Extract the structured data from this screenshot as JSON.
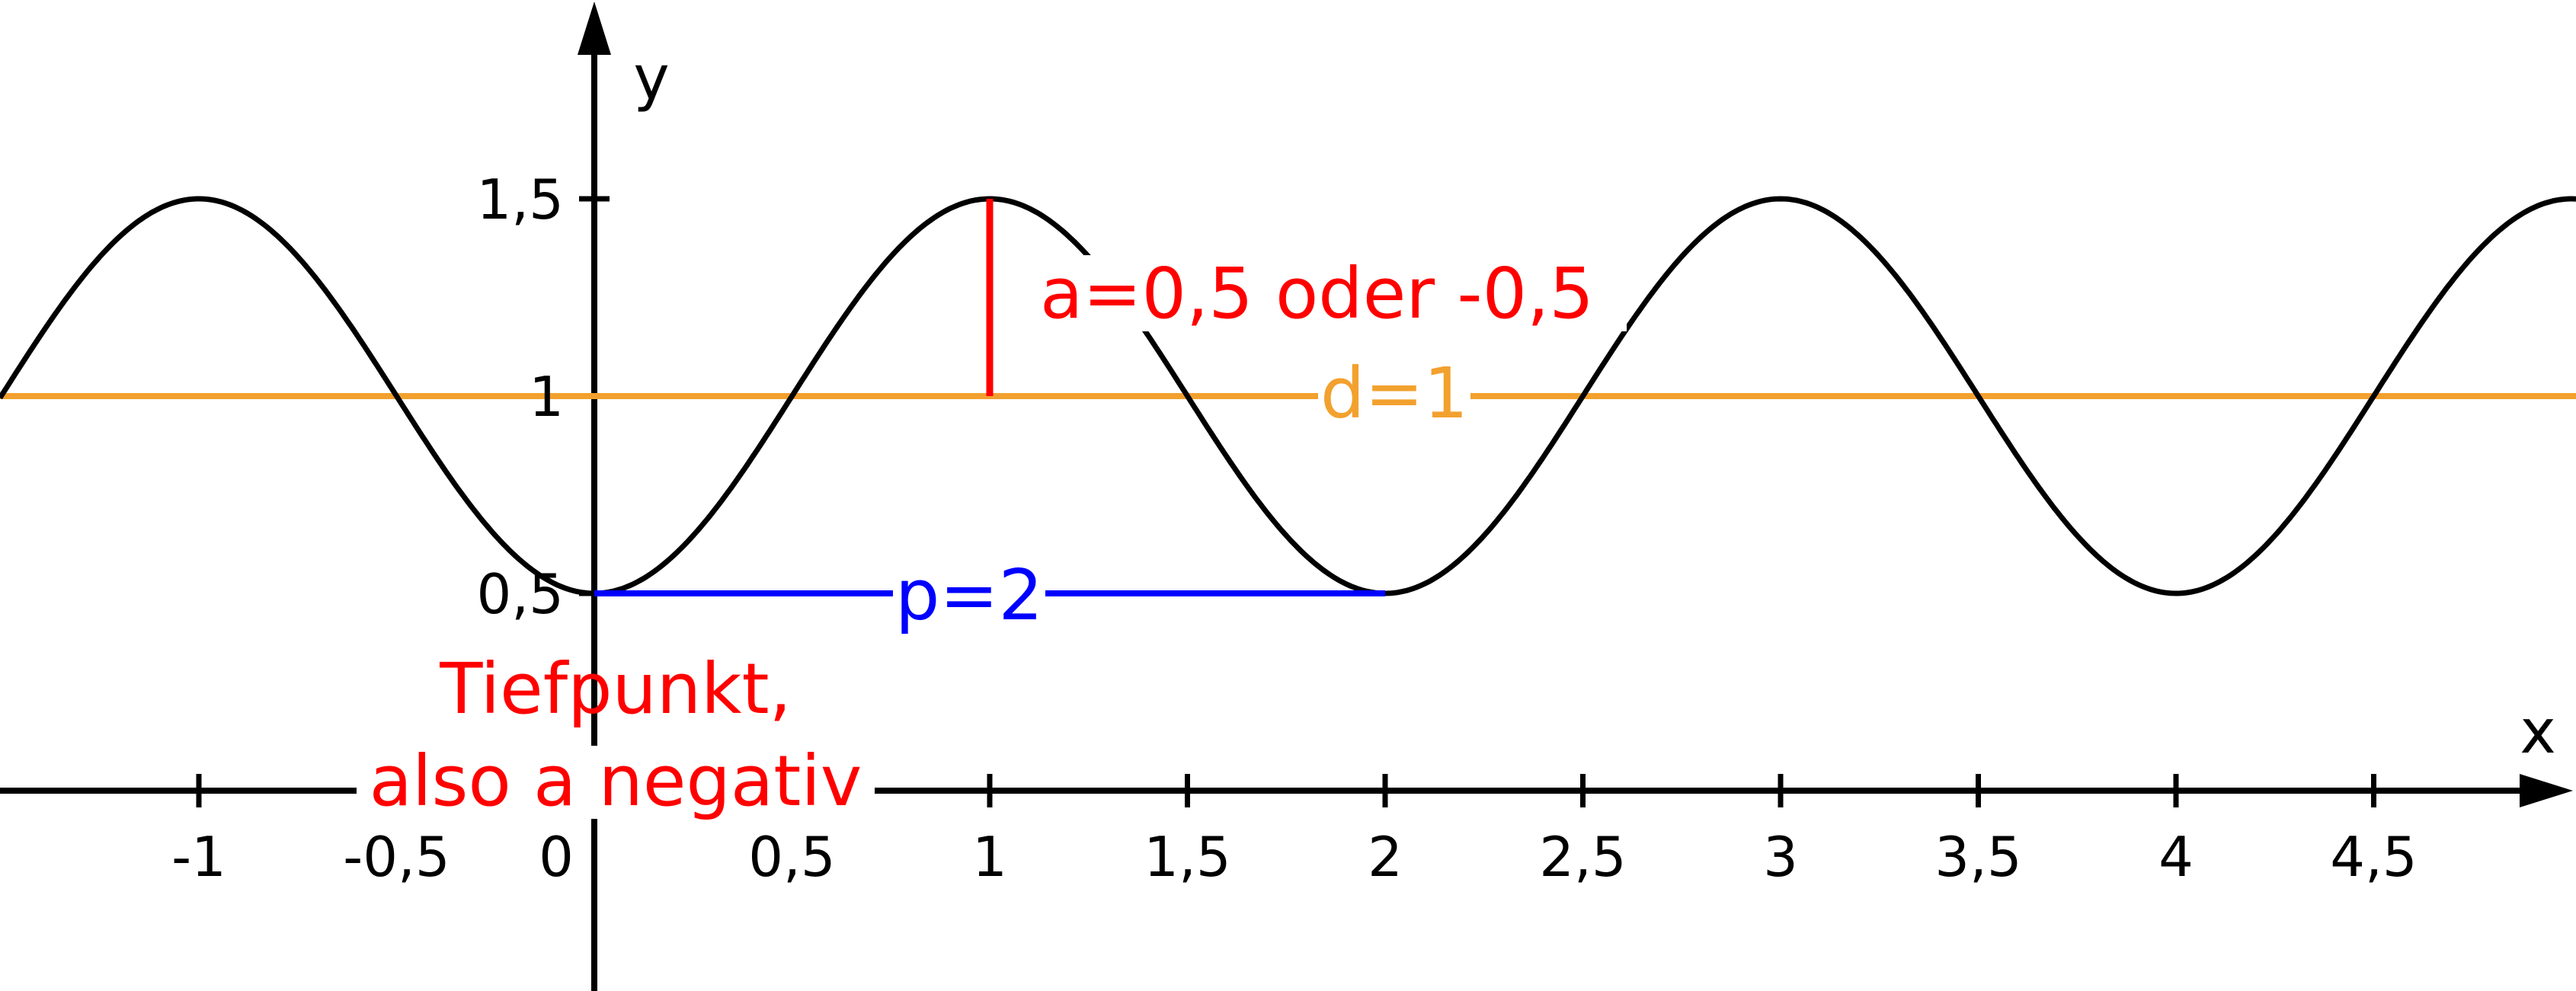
{
  "chart_data": {
    "type": "line",
    "function": "y = -0.5*cos(pi*x) + 1",
    "xlabel": "x",
    "ylabel": "y",
    "xlim": [
      -1.5,
      5.0
    ],
    "ylim": [
      -0.5,
      2.0
    ],
    "x_ticks": [
      {
        "value": -1,
        "label": "-1"
      },
      {
        "value": -0.5,
        "label": "-0,5"
      },
      {
        "value": 0,
        "label": "0"
      },
      {
        "value": 0.5,
        "label": "0,5"
      },
      {
        "value": 1,
        "label": "1"
      },
      {
        "value": 1.5,
        "label": "1,5"
      },
      {
        "value": 2,
        "label": "2"
      },
      {
        "value": 2.5,
        "label": "2,5"
      },
      {
        "value": 3,
        "label": "3"
      },
      {
        "value": 3.5,
        "label": "3,5"
      },
      {
        "value": 4,
        "label": "4"
      },
      {
        "value": 4.5,
        "label": "4,5"
      }
    ],
    "y_ticks": [
      {
        "value": 0.5,
        "label": "0,5"
      },
      {
        "value": 1,
        "label": "1"
      },
      {
        "value": 1.5,
        "label": "1,5"
      }
    ],
    "series": [
      {
        "color": "#000000",
        "amplitude": 0.5,
        "period": 2,
        "offset": 1,
        "minimum_at": 0
      }
    ],
    "annotations": {
      "amplitude": {
        "text": "a=0,5 oder -0,5",
        "color": "#ff0000",
        "x": 1,
        "y_from": 1,
        "y_to": 1.5
      },
      "offset": {
        "text": "d=1",
        "color": "#f2a12e",
        "y": 1
      },
      "period": {
        "text": "p=2",
        "color": "#0000ff",
        "x_from": 0,
        "x_to": 2,
        "y": 0.5
      },
      "minimum": {
        "line1": "Tiefpunkt,",
        "line2": "also a negativ",
        "color": "#ff0000"
      }
    },
    "grid": false,
    "legend": "none"
  }
}
